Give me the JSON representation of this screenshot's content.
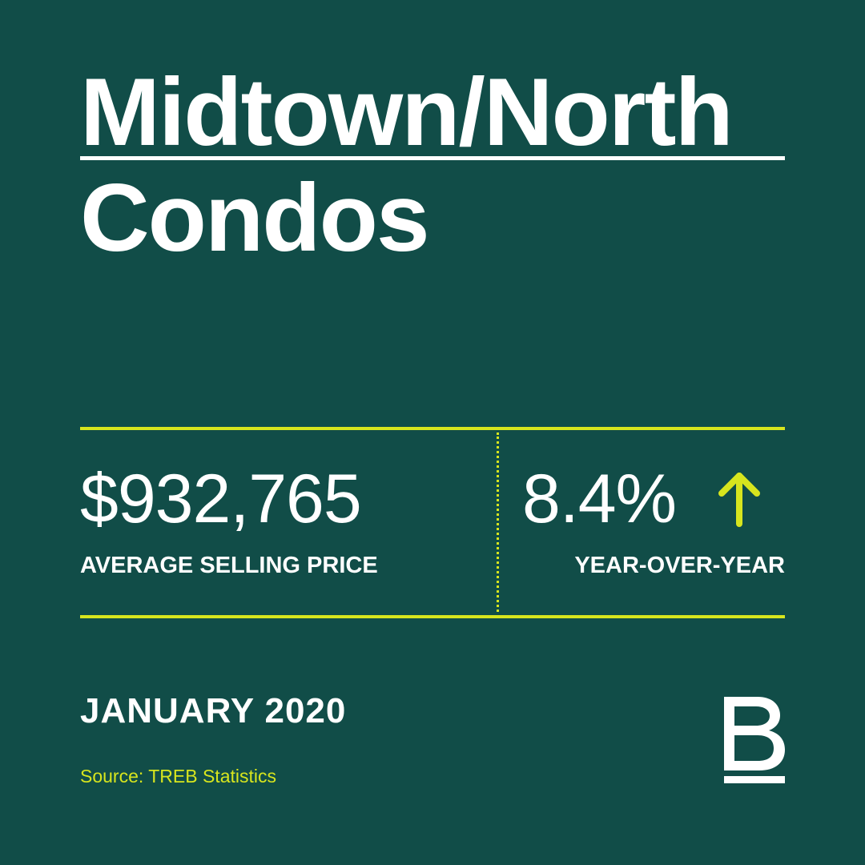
{
  "title": {
    "line1": "Midtown/North",
    "line2": "Condos"
  },
  "stats": {
    "price_value": "$932,765",
    "price_label": "AVERAGE SELLING PRICE",
    "change_value": "8.4%",
    "change_direction": "up",
    "change_label": "YEAR-OVER-YEAR"
  },
  "date": "JANUARY 2020",
  "source": "Source: TREB Statistics",
  "icons": {
    "change_arrow": "arrow-up-icon",
    "logo": "brand-b-logo"
  },
  "colors": {
    "background": "#114d48",
    "accent": "#d7e51e",
    "text": "#ffffff"
  }
}
